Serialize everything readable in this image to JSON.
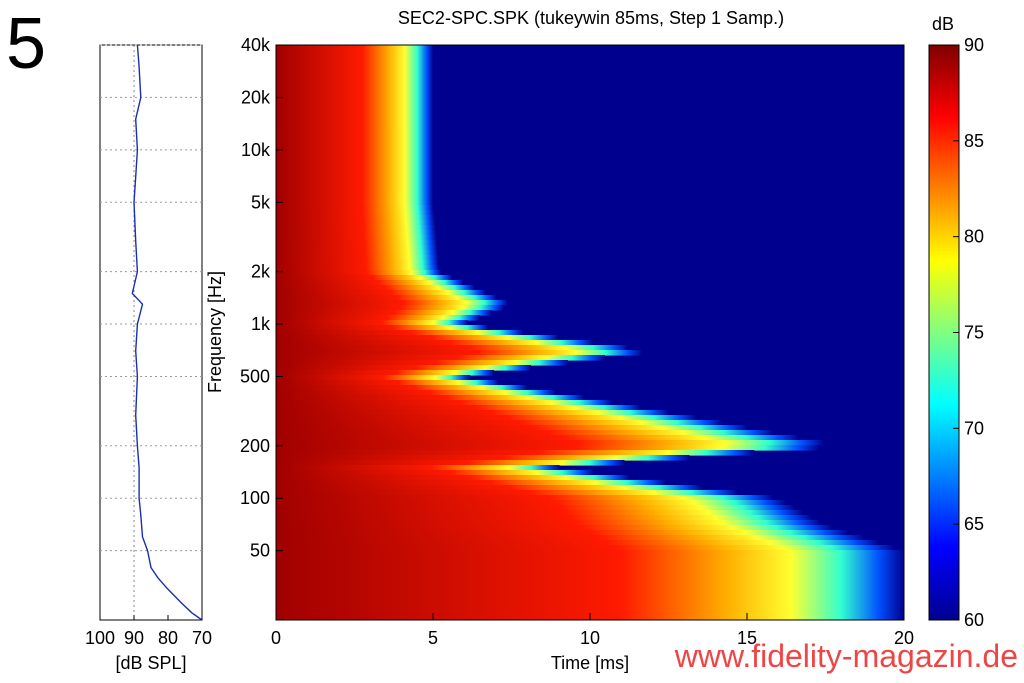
{
  "figure": {
    "number": "5",
    "watermark": "www.fidelity-magazin.de"
  },
  "chart_data": [
    {
      "type": "line",
      "name": "frequency-response-side-plot",
      "xlabel": "[dB SPL]",
      "xticks": [
        "100",
        "90",
        "80",
        "70"
      ],
      "xlim": [
        100,
        70
      ],
      "x_reversed": true,
      "ylim_hz": [
        20,
        40000
      ],
      "ylog": true,
      "series": [
        {
          "name": "SPL",
          "freq_hz": [
            40000,
            30000,
            20000,
            15000,
            10000,
            7000,
            5000,
            3000,
            2000,
            1500,
            1300,
            1000,
            700,
            500,
            300,
            200,
            150,
            100,
            80,
            60,
            50,
            40,
            35,
            30,
            25,
            22,
            20
          ],
          "spl_db": [
            89,
            88.5,
            88,
            89.5,
            89,
            89.5,
            90,
            89.5,
            89,
            90.5,
            87.5,
            89,
            89.5,
            89,
            89.5,
            89,
            88.5,
            88.5,
            88,
            87.5,
            86,
            85,
            83,
            80,
            76,
            73,
            70
          ]
        }
      ]
    },
    {
      "type": "heatmap",
      "name": "cumulative-spectral-decay",
      "title": "SEC2-SPC.SPK (tukeywin 85ms, Step 1 Samp.)",
      "xlabel": "Time [ms]",
      "ylabel": "Frequency [Hz]",
      "xlim": [
        0,
        20
      ],
      "xticks": [
        "0",
        "5",
        "10",
        "15",
        "20"
      ],
      "ylim_hz": [
        20,
        40000
      ],
      "ylog": true,
      "yticks": [
        {
          "value": 40000,
          "label": "40k"
        },
        {
          "value": 20000,
          "label": "20k"
        },
        {
          "value": 10000,
          "label": "10k"
        },
        {
          "value": 5000,
          "label": "5k"
        },
        {
          "value": 2000,
          "label": "2k"
        },
        {
          "value": 1000,
          "label": "1k"
        },
        {
          "value": 500,
          "label": "500"
        },
        {
          "value": 200,
          "label": "200"
        },
        {
          "value": 100,
          "label": "100"
        },
        {
          "value": 50,
          "label": "50"
        }
      ],
      "colorbar": {
        "label": "dB",
        "range": [
          60,
          90
        ],
        "ticks": [
          "90",
          "85",
          "80",
          "75",
          "70",
          "65",
          "60"
        ],
        "colormap": [
          "#00008f",
          "#0000ff",
          "#0080ff",
          "#00ffff",
          "#80ff80",
          "#ffff00",
          "#ff8000",
          "#ff0000",
          "#800000"
        ]
      },
      "decay_time_ms_to_60dB": {
        "freq_hz": [
          40000,
          20000,
          10000,
          5000,
          2000,
          1300,
          1000,
          700,
          500,
          300,
          200,
          150,
          100,
          70,
          50,
          35,
          25,
          20
        ],
        "time_ms": [
          5.0,
          5.0,
          5.0,
          5.0,
          5.2,
          7.5,
          6.0,
          12.0,
          6.0,
          13.0,
          18.0,
          9.0,
          16.0,
          17.5,
          20.0,
          20.0,
          20.0,
          20.0
        ]
      }
    }
  ]
}
